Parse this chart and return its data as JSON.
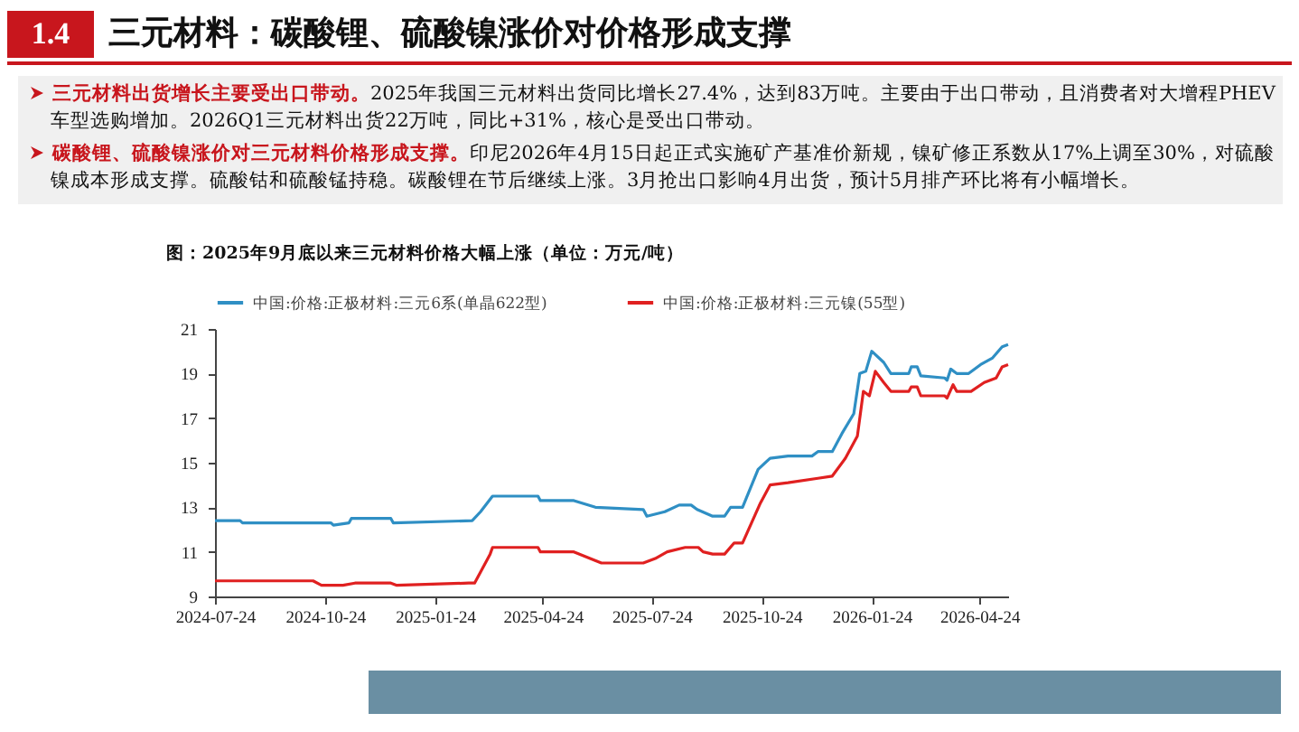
{
  "chart_data": {
    "type": "line",
    "title": "1.4 三元材料：碳酸锂、硫酸镍涨价对价格形成支撑",
    "subtitle": "图：2025年9月底以来三元材料价格大幅上涨（单位：万元/吨）",
    "annotations": [
      "三元材料出货增长主要受出口带动。2025年我国三元材料出货同比增长27.4%，达到83万吨。主要由于出口带动，且消费者对大增程PHEV车型选购增加。2026Q1三元材料出货22万吨，同比+31%，核心是受出口带动。",
      "碳酸锂、硫酸镍涨价对三元材料价格形成支撑。印尼2026年4月15日起正式实施矿产基准价新规，镍矿修正系数从17%上调至30%，对硫酸镍成本形成支撑。硫酸钴和硫酸锰持稳。碳酸锂在节后继续上涨。3月抢出口影响4月出货，预计5月排产环比将有小幅增长。"
    ],
    "series": [
      {
        "name": "中国:价格:正极材料:三元6系(单晶622型)",
        "color": "#2f8fc4",
        "x": [
          "2024-07-24",
          "2024-08-14",
          "2024-08-16",
          "2024-10-29",
          "2024-10-31",
          "2024-11-13",
          "2024-11-15",
          "2024-12-18",
          "2024-12-20",
          "2025-02-24",
          "2025-03-03",
          "2025-03-13",
          "2025-04-20",
          "2025-04-22",
          "2025-05-20",
          "2025-06-07",
          "2025-07-17",
          "2025-07-20",
          "2025-08-04",
          "2025-08-16",
          "2025-08-26",
          "2025-08-31",
          "2025-09-13",
          "2025-09-23",
          "2025-09-28",
          "2025-10-08",
          "2025-10-21",
          "2025-10-31",
          "2025-11-15",
          "2025-12-05",
          "2025-12-10",
          "2025-12-22",
          "2025-12-30",
          "2026-01-09",
          "2026-01-14",
          "2026-01-19",
          "2026-01-24",
          "2026-02-03",
          "2026-02-09",
          "2026-02-24",
          "2026-02-26",
          "2026-03-03",
          "2026-03-06",
          "2026-03-26",
          "2026-03-28",
          "2026-03-31",
          "2026-04-05",
          "2026-04-15",
          "2026-04-25",
          "2026-05-05",
          "2026-05-13",
          "2026-05-18"
        ],
        "values": [
          12.4,
          12.4,
          12.3,
          12.3,
          12.2,
          12.3,
          12.5,
          12.5,
          12.3,
          12.4,
          12.8,
          13.5,
          13.5,
          13.3,
          13.3,
          13.0,
          12.9,
          12.6,
          12.8,
          13.1,
          13.1,
          12.9,
          12.6,
          12.6,
          13.0,
          13.0,
          14.7,
          15.2,
          15.3,
          15.3,
          15.5,
          15.5,
          16.3,
          17.2,
          19.0,
          19.1,
          20.0,
          19.5,
          19.0,
          19.0,
          19.3,
          19.3,
          18.9,
          18.8,
          18.7,
          19.2,
          19.0,
          19.0,
          19.4,
          19.7,
          20.2,
          20.3
        ]
      },
      {
        "name": "中国:价格:正极材料:三元镍(55型)",
        "color": "#e02020",
        "x": [
          "2024-07-24",
          "2024-09-06",
          "2024-09-13",
          "2024-10-14",
          "2024-10-21",
          "2024-11-08",
          "2024-11-18",
          "2024-12-18",
          "2024-12-23",
          "2025-02-21",
          "2025-02-26",
          "2025-03-11",
          "2025-03-13",
          "2025-04-20",
          "2025-04-22",
          "2025-05-20",
          "2025-06-12",
          "2025-07-17",
          "2025-07-27",
          "2025-08-06",
          "2025-08-21",
          "2025-09-01",
          "2025-09-05",
          "2025-09-13",
          "2025-09-23",
          "2025-10-01",
          "2025-10-08",
          "2025-10-23",
          "2025-10-31",
          "2025-11-15",
          "2025-12-10",
          "2025-12-22",
          "2026-01-02",
          "2026-01-12",
          "2026-01-17",
          "2026-01-22",
          "2026-01-27",
          "2026-02-03",
          "2026-02-09",
          "2026-02-24",
          "2026-02-26",
          "2026-03-03",
          "2026-03-06",
          "2026-03-26",
          "2026-03-28",
          "2026-04-02",
          "2026-04-05",
          "2026-04-17",
          "2026-04-28",
          "2026-05-08",
          "2026-05-13",
          "2026-05-18"
        ],
        "values": [
          9.7,
          9.7,
          9.7,
          9.7,
          9.5,
          9.5,
          9.6,
          9.6,
          9.5,
          9.6,
          9.6,
          10.9,
          11.2,
          11.2,
          11.0,
          11.0,
          10.5,
          10.5,
          10.7,
          11.0,
          11.2,
          11.2,
          11.0,
          10.9,
          10.9,
          11.4,
          11.4,
          13.2,
          14.0,
          14.1,
          14.3,
          14.4,
          15.2,
          16.2,
          18.2,
          18.0,
          19.1,
          18.6,
          18.2,
          18.2,
          18.4,
          18.4,
          18.0,
          18.0,
          17.9,
          18.5,
          18.2,
          18.2,
          18.6,
          18.8,
          19.3,
          19.4
        ]
      }
    ],
    "xlim": [
      "2024-07-24",
      "2026-05-18"
    ],
    "xticks": [
      "2024-07-24",
      "2024-10-24",
      "2025-01-24",
      "2025-04-24",
      "2025-07-24",
      "2025-10-24",
      "2026-01-24",
      "2026-04-24"
    ],
    "ylim": [
      9,
      21
    ],
    "yticks": [
      9,
      11,
      13,
      15,
      17,
      19,
      21
    ],
    "legend": "top"
  }
}
